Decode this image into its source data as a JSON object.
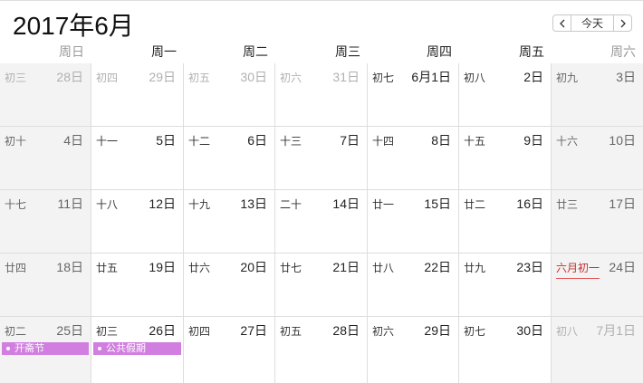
{
  "header": {
    "title": "2017年6月",
    "today_button": "今天"
  },
  "weekdays": [
    "周日",
    "周一",
    "周二",
    "周三",
    "周四",
    "周五",
    "周六"
  ],
  "weeks": [
    [
      {
        "lunar": "初三",
        "date": "28日"
      },
      {
        "lunar": "初四",
        "date": "29日"
      },
      {
        "lunar": "初五",
        "date": "30日"
      },
      {
        "lunar": "初六",
        "date": "31日"
      },
      {
        "lunar": "初七",
        "date": "6月1日"
      },
      {
        "lunar": "初八",
        "date": "2日"
      },
      {
        "lunar": "初九",
        "date": "3日"
      }
    ],
    [
      {
        "lunar": "初十",
        "date": "4日"
      },
      {
        "lunar": "十一",
        "date": "5日"
      },
      {
        "lunar": "十二",
        "date": "6日"
      },
      {
        "lunar": "十三",
        "date": "7日"
      },
      {
        "lunar": "十四",
        "date": "8日"
      },
      {
        "lunar": "十五",
        "date": "9日"
      },
      {
        "lunar": "十六",
        "date": "10日"
      }
    ],
    [
      {
        "lunar": "十七",
        "date": "11日"
      },
      {
        "lunar": "十八",
        "date": "12日"
      },
      {
        "lunar": "十九",
        "date": "13日"
      },
      {
        "lunar": "二十",
        "date": "14日"
      },
      {
        "lunar": "廿一",
        "date": "15日"
      },
      {
        "lunar": "廿二",
        "date": "16日"
      },
      {
        "lunar": "廿三",
        "date": "17日"
      }
    ],
    [
      {
        "lunar": "廿四",
        "date": "18日"
      },
      {
        "lunar": "廿五",
        "date": "19日"
      },
      {
        "lunar": "廿六",
        "date": "20日"
      },
      {
        "lunar": "廿七",
        "date": "21日"
      },
      {
        "lunar": "廿八",
        "date": "22日"
      },
      {
        "lunar": "廿九",
        "date": "23日"
      },
      {
        "lunar": "六月初一",
        "date": "24日"
      }
    ],
    [
      {
        "lunar": "初二",
        "date": "25日",
        "events": [
          "开斋节"
        ]
      },
      {
        "lunar": "初三",
        "date": "26日",
        "events": [
          "公共假期"
        ]
      },
      {
        "lunar": "初四",
        "date": "27日"
      },
      {
        "lunar": "初五",
        "date": "28日"
      },
      {
        "lunar": "初六",
        "date": "29日"
      },
      {
        "lunar": "初七",
        "date": "30日"
      },
      {
        "lunar": "初八",
        "date": "7月1日"
      }
    ]
  ]
}
